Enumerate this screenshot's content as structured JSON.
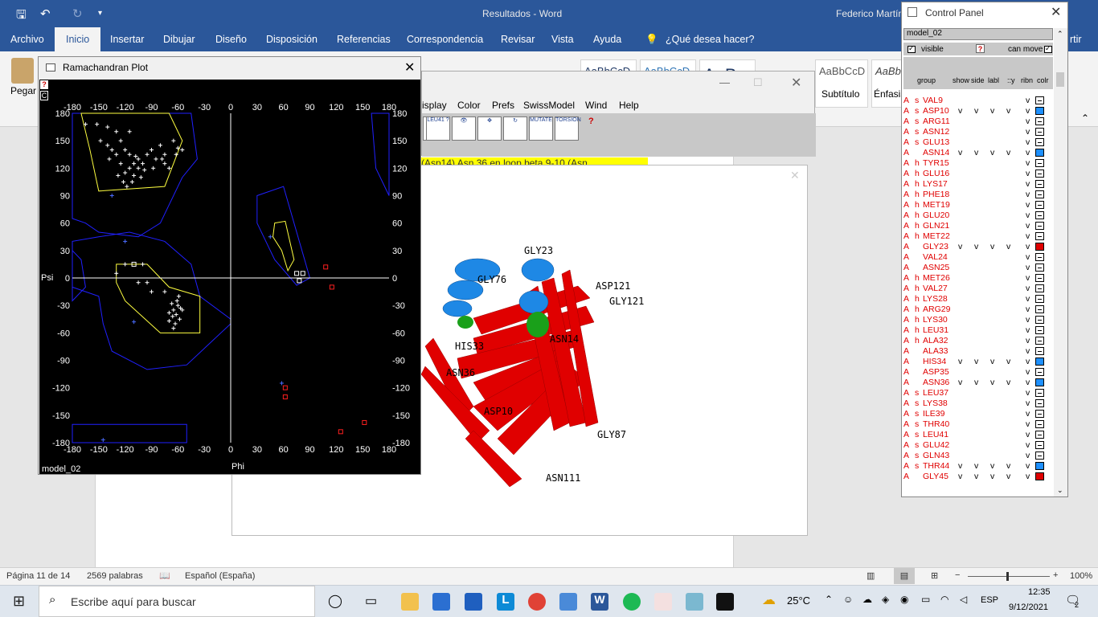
{
  "word": {
    "doc_title": "Resultados - Word",
    "user": "Federico Martín",
    "tabs": [
      "Archivo",
      "Inicio",
      "Insertar",
      "Dibujar",
      "Diseño",
      "Disposición",
      "Referencias",
      "Correspondencia",
      "Revisar",
      "Vista",
      "Ayuda",
      "¿Qué desea hacer?"
    ],
    "share": "rtir",
    "paste_label": "Pegar",
    "styles": [
      "AaBbCcD",
      "AaBbCcD",
      "AaB",
      "AaBbCcD",
      "AaBb"
    ],
    "style_names": [
      "Subtítulo",
      "Énfasis"
    ],
    "highlight_text": "(Asp14)   Asn 36  en loop beta 9-10 (Asn",
    "status": {
      "page": "Página 11 de 14",
      "words": "2569 palabras",
      "language": "Español (España)",
      "zoom": "100%"
    }
  },
  "chimera": {
    "menus": [
      "isplay",
      "Color",
      "Prefs",
      "SwissModel",
      "Wind",
      "Help"
    ],
    "tools": [
      "LEU41 ?",
      "",
      "",
      "",
      "MUTATE",
      "TORSION"
    ],
    "labels": [
      "GLY23",
      "GLY76",
      "ASP121",
      "GLY121",
      "ASN14",
      "HIS33",
      "ASN36",
      "ASP10",
      "GLY87",
      "ASN111"
    ]
  },
  "rama": {
    "title": "Ramachandran Plot",
    "model": "model_02",
    "xlabel": "Phi",
    "ylabel": "Psi"
  },
  "chart_data": {
    "type": "scatter",
    "title": "",
    "xlabel": "Phi",
    "ylabel": "Psi",
    "xlim": [
      -180,
      180
    ],
    "ylim": [
      -180,
      180
    ],
    "ticks": [
      -180,
      -150,
      -120,
      -90,
      -60,
      -30,
      0,
      30,
      60,
      90,
      120,
      150,
      180
    ],
    "series": [
      {
        "color": "#ffffff",
        "points": [
          [
            -165,
            168
          ],
          [
            -152,
            168
          ],
          [
            -148,
            150
          ],
          [
            -140,
            145
          ],
          [
            -135,
            140
          ],
          [
            -130,
            135
          ],
          [
            -125,
            150
          ],
          [
            -120,
            140
          ],
          [
            -115,
            135
          ],
          [
            -110,
            125
          ],
          [
            -105,
            130
          ],
          [
            -100,
            125
          ],
          [
            -95,
            135
          ],
          [
            -90,
            140
          ],
          [
            -85,
            130
          ],
          [
            -80,
            145
          ],
          [
            -75,
            135
          ],
          [
            -65,
            150
          ],
          [
            -60,
            142
          ],
          [
            -125,
            125
          ],
          [
            -120,
            115
          ],
          [
            -115,
            120
          ],
          [
            -110,
            112
          ],
          [
            -128,
            112
          ],
          [
            -105,
            120
          ],
          [
            -70,
            120
          ],
          [
            -62,
            135
          ],
          [
            -140,
            165
          ],
          [
            -130,
            160
          ],
          [
            -115,
            160
          ],
          [
            -118,
            100
          ],
          [
            -112,
            105
          ],
          [
            -108,
            133
          ],
          [
            -98,
            118
          ],
          [
            -88,
            120
          ],
          [
            -75,
            125
          ],
          [
            -138,
            130
          ],
          [
            -122,
            105
          ],
          [
            -102,
            110
          ],
          [
            -78,
            130
          ],
          [
            -55,
            140
          ],
          [
            -60,
            -30
          ],
          [
            -62,
            -40
          ],
          [
            -65,
            -35
          ],
          [
            -58,
            -45
          ],
          [
            -67,
            -28
          ],
          [
            -63,
            -50
          ],
          [
            -59,
            -20
          ],
          [
            -70,
            -38
          ],
          [
            -66,
            -42
          ],
          [
            -55,
            -35
          ],
          [
            -61,
            -25
          ],
          [
            -75,
            -15
          ],
          [
            -90,
            -15
          ],
          [
            -95,
            -5
          ],
          [
            -105,
            -5
          ],
          [
            -130,
            5
          ],
          [
            -120,
            15
          ],
          [
            -100,
            15
          ],
          [
            -65,
            -55
          ],
          [
            -70,
            -47
          ],
          [
            -57,
            -33
          ]
        ]
      },
      {
        "color": "#ffffff",
        "marker": "square",
        "points": [
          [
            -110,
            15
          ],
          [
            75,
            5
          ],
          [
            78,
            -3
          ],
          [
            82,
            5
          ]
        ]
      },
      {
        "color": "#ff2020",
        "marker": "square",
        "points": [
          [
            108,
            12
          ],
          [
            115,
            -10
          ],
          [
            62,
            -120
          ],
          [
            62,
            -130
          ],
          [
            125,
            -168
          ],
          [
            152,
            -158
          ]
        ]
      },
      {
        "color": "#4a6cff",
        "points": [
          [
            -135,
            90
          ],
          [
            -120,
            40
          ],
          [
            -110,
            -48
          ],
          [
            45,
            45
          ],
          [
            58,
            -115
          ],
          [
            -145,
            -177
          ]
        ]
      }
    ]
  },
  "control_panel": {
    "title": "Control Panel",
    "model": "model_02",
    "visible_label": "visible",
    "can_move_label": "can move",
    "col_headers": [
      "group",
      "show",
      "side",
      "labl",
      "::y",
      "ribn",
      "colr"
    ],
    "residues": [
      {
        "s": "s",
        "name": "VAL9",
        "v": [
          0,
          0,
          0,
          0,
          1
        ],
        "color": "#ffffff"
      },
      {
        "s": "s",
        "name": "ASP10",
        "v": [
          1,
          1,
          1,
          1,
          1
        ],
        "color": "#1e90ff"
      },
      {
        "s": "s",
        "name": "ARG11",
        "v": [
          0,
          0,
          0,
          0,
          1
        ],
        "color": "#ffffff"
      },
      {
        "s": "s",
        "name": "ASN12",
        "v": [
          0,
          0,
          0,
          0,
          1
        ],
        "color": "#ffffff"
      },
      {
        "s": "s",
        "name": "GLU13",
        "v": [
          0,
          0,
          0,
          0,
          1
        ],
        "color": "#ffffff"
      },
      {
        "s": "",
        "name": "ASN14",
        "v": [
          1,
          1,
          1,
          1,
          1
        ],
        "color": "#1e90ff"
      },
      {
        "s": "h",
        "name": "TYR15",
        "v": [
          0,
          0,
          0,
          0,
          1
        ],
        "color": "#ffffff"
      },
      {
        "s": "h",
        "name": "GLU16",
        "v": [
          0,
          0,
          0,
          0,
          1
        ],
        "color": "#ffffff"
      },
      {
        "s": "h",
        "name": "LYS17",
        "v": [
          0,
          0,
          0,
          0,
          1
        ],
        "color": "#ffffff"
      },
      {
        "s": "h",
        "name": "PHE18",
        "v": [
          0,
          0,
          0,
          0,
          1
        ],
        "color": "#ffffff"
      },
      {
        "s": "h",
        "name": "MET19",
        "v": [
          0,
          0,
          0,
          0,
          1
        ],
        "color": "#ffffff"
      },
      {
        "s": "h",
        "name": "GLU20",
        "v": [
          0,
          0,
          0,
          0,
          1
        ],
        "color": "#ffffff"
      },
      {
        "s": "h",
        "name": "GLN21",
        "v": [
          0,
          0,
          0,
          0,
          1
        ],
        "color": "#ffffff"
      },
      {
        "s": "h",
        "name": "MET22",
        "v": [
          0,
          0,
          0,
          0,
          1
        ],
        "color": "#ffffff"
      },
      {
        "s": "",
        "name": "GLY23",
        "v": [
          1,
          1,
          1,
          1,
          1
        ],
        "color": "#e00000"
      },
      {
        "s": "",
        "name": "VAL24",
        "v": [
          0,
          0,
          0,
          0,
          1
        ],
        "color": "#ffffff"
      },
      {
        "s": "",
        "name": "ASN25",
        "v": [
          0,
          0,
          0,
          0,
          1
        ],
        "color": "#ffffff"
      },
      {
        "s": "h",
        "name": "MET26",
        "v": [
          0,
          0,
          0,
          0,
          1
        ],
        "color": "#ffffff"
      },
      {
        "s": "h",
        "name": "VAL27",
        "v": [
          0,
          0,
          0,
          0,
          1
        ],
        "color": "#ffffff"
      },
      {
        "s": "h",
        "name": "LYS28",
        "v": [
          0,
          0,
          0,
          0,
          1
        ],
        "color": "#ffffff"
      },
      {
        "s": "h",
        "name": "ARG29",
        "v": [
          0,
          0,
          0,
          0,
          1
        ],
        "color": "#ffffff"
      },
      {
        "s": "h",
        "name": "LYS30",
        "v": [
          0,
          0,
          0,
          0,
          1
        ],
        "color": "#ffffff"
      },
      {
        "s": "h",
        "name": "LEU31",
        "v": [
          0,
          0,
          0,
          0,
          1
        ],
        "color": "#ffffff"
      },
      {
        "s": "h",
        "name": "ALA32",
        "v": [
          0,
          0,
          0,
          0,
          1
        ],
        "color": "#ffffff"
      },
      {
        "s": "",
        "name": "ALA33",
        "v": [
          0,
          0,
          0,
          0,
          1
        ],
        "color": "#ffffff"
      },
      {
        "s": "",
        "name": "HIS34",
        "v": [
          1,
          1,
          1,
          1,
          1
        ],
        "color": "#1e90ff"
      },
      {
        "s": "",
        "name": "ASP35",
        "v": [
          0,
          0,
          0,
          0,
          1
        ],
        "color": "#ffffff"
      },
      {
        "s": "",
        "name": "ASN36",
        "v": [
          1,
          1,
          1,
          1,
          1
        ],
        "color": "#1e90ff"
      },
      {
        "s": "s",
        "name": "LEU37",
        "v": [
          0,
          0,
          0,
          0,
          1
        ],
        "color": "#ffffff"
      },
      {
        "s": "s",
        "name": "LYS38",
        "v": [
          0,
          0,
          0,
          0,
          1
        ],
        "color": "#ffffff"
      },
      {
        "s": "s",
        "name": "ILE39",
        "v": [
          0,
          0,
          0,
          0,
          1
        ],
        "color": "#ffffff"
      },
      {
        "s": "s",
        "name": "THR40",
        "v": [
          0,
          0,
          0,
          0,
          1
        ],
        "color": "#ffffff"
      },
      {
        "s": "s",
        "name": "LEU41",
        "v": [
          0,
          0,
          0,
          0,
          1
        ],
        "color": "#ffffff"
      },
      {
        "s": "s",
        "name": "GLU42",
        "v": [
          0,
          0,
          0,
          0,
          1
        ],
        "color": "#ffffff"
      },
      {
        "s": "s",
        "name": "GLN43",
        "v": [
          0,
          0,
          0,
          0,
          1
        ],
        "color": "#ffffff"
      },
      {
        "s": "s",
        "name": "THR44",
        "v": [
          1,
          1,
          1,
          1,
          1
        ],
        "color": "#1e90ff"
      },
      {
        "s": "",
        "name": "GLY45",
        "v": [
          1,
          1,
          1,
          1,
          1
        ],
        "color": "#e00000"
      }
    ]
  },
  "taskbar": {
    "search_placeholder": "Escribe aquí para buscar",
    "weather": "25°C",
    "lang": "ESP",
    "time": "12:35",
    "date": "9/12/2021",
    "notif": "2"
  }
}
